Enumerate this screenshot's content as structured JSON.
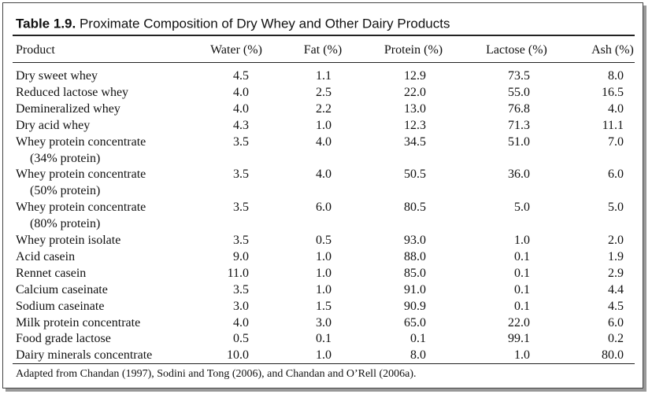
{
  "title": {
    "label": "Table 1.9.",
    "text": "Proximate Composition of Dry Whey and Other Dairy Products"
  },
  "table": {
    "header": [
      "Product",
      "Water (%)",
      "Fat (%)",
      "Protein (%)",
      "Lactose (%)",
      "Ash (%)"
    ],
    "rows": [
      [
        [
          "Dry sweet whey"
        ],
        "4.5",
        "1.1",
        "12.9",
        "73.5",
        "8.0"
      ],
      [
        [
          "Reduced lactose whey"
        ],
        "4.0",
        "2.5",
        "22.0",
        "55.0",
        "16.5"
      ],
      [
        [
          "Demineralized whey"
        ],
        "4.0",
        "2.2",
        "13.0",
        "76.8",
        "4.0"
      ],
      [
        [
          "Dry acid whey"
        ],
        "4.3",
        "1.0",
        "12.3",
        "71.3",
        "11.1"
      ],
      [
        [
          "Whey protein concentrate",
          "(34% protein)"
        ],
        "3.5",
        "4.0",
        "34.5",
        "51.0",
        "7.0"
      ],
      [
        [
          "Whey protein concentrate",
          "(50% protein)"
        ],
        "3.5",
        "4.0",
        "50.5",
        "36.0",
        "6.0"
      ],
      [
        [
          "Whey protein concentrate",
          "(80% protein)"
        ],
        "3.5",
        "6.0",
        "80.5",
        "5.0",
        "5.0"
      ],
      [
        [
          "Whey protein isolate"
        ],
        "3.5",
        "0.5",
        "93.0",
        "1.0",
        "2.0"
      ],
      [
        [
          "Acid casein"
        ],
        "9.0",
        "1.0",
        "88.0",
        "0.1",
        "1.9"
      ],
      [
        [
          "Rennet casein"
        ],
        "11.0",
        "1.0",
        "85.0",
        "0.1",
        "2.9"
      ],
      [
        [
          "Calcium caseinate"
        ],
        "3.5",
        "1.0",
        "91.0",
        "0.1",
        "4.4"
      ],
      [
        [
          "Sodium caseinate"
        ],
        "3.0",
        "1.5",
        "90.9",
        "0.1",
        "4.5"
      ],
      [
        [
          "Milk protein concentrate"
        ],
        "4.0",
        "3.0",
        "65.0",
        "22.0",
        "6.0"
      ],
      [
        [
          "Food grade lactose"
        ],
        "0.5",
        "0.1",
        "0.1",
        "99.1",
        "0.2"
      ],
      [
        [
          "Dairy minerals concentrate"
        ],
        "10.0",
        "1.0",
        "8.0",
        "1.0",
        "80.0"
      ]
    ],
    "footnote": "Adapted from Chandan (1997), Sodini and Tong (2006), and Chandan and O’Rell (2006a)."
  }
}
